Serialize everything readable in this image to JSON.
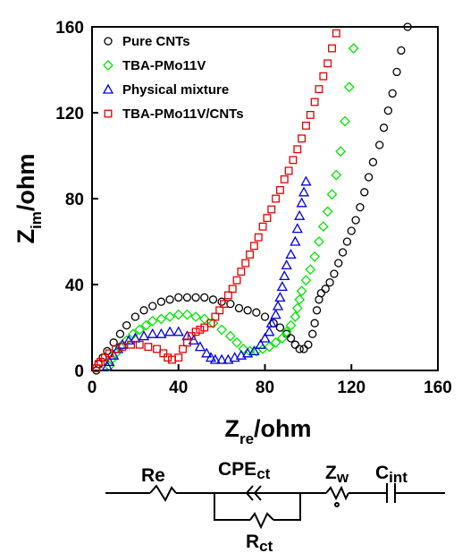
{
  "chart_data": {
    "type": "scatter",
    "title": "",
    "xlabel": {
      "main": "Z",
      "sub": "re",
      "unit": "/ohm"
    },
    "ylabel": {
      "main": "Z",
      "sub": "im",
      "unit": "/ohm"
    },
    "xlim": [
      0,
      160
    ],
    "ylim": [
      0,
      160
    ],
    "xticks": [
      "0",
      "40",
      "80",
      "120",
      "160"
    ],
    "yticks": [
      "0",
      "40",
      "80",
      "120",
      "160"
    ],
    "grid": false,
    "legend_position": "top-left",
    "series": [
      {
        "name": "Pure CNTs",
        "marker": "circle",
        "color": "#000000",
        "points": [
          [
            2,
            0
          ],
          [
            3,
            3
          ],
          [
            5,
            6
          ],
          [
            7,
            9
          ],
          [
            10,
            13
          ],
          [
            13,
            17
          ],
          [
            16,
            21
          ],
          [
            20,
            25
          ],
          [
            24,
            28
          ],
          [
            28,
            30
          ],
          [
            32,
            32
          ],
          [
            36,
            33
          ],
          [
            40,
            34
          ],
          [
            44,
            34
          ],
          [
            48,
            34
          ],
          [
            52,
            34
          ],
          [
            56,
            33
          ],
          [
            60,
            32
          ],
          [
            64,
            31
          ],
          [
            68,
            29
          ],
          [
            72,
            28
          ],
          [
            76,
            27
          ],
          [
            80,
            25
          ],
          [
            84,
            22
          ],
          [
            87,
            20
          ],
          [
            90,
            17
          ],
          [
            92,
            15
          ],
          [
            94,
            12
          ],
          [
            96,
            10
          ],
          [
            98,
            10
          ],
          [
            100,
            12
          ],
          [
            102,
            17
          ],
          [
            103,
            22
          ],
          [
            104,
            28
          ],
          [
            105,
            33
          ],
          [
            106,
            36
          ],
          [
            108,
            38
          ],
          [
            110,
            41
          ],
          [
            112,
            45
          ],
          [
            114,
            50
          ],
          [
            116,
            55
          ],
          [
            118,
            60
          ],
          [
            120,
            65
          ],
          [
            122,
            70
          ],
          [
            124,
            76
          ],
          [
            126,
            83
          ],
          [
            128,
            90
          ],
          [
            130,
            97
          ],
          [
            133,
            105
          ],
          [
            135,
            113
          ],
          [
            137,
            121
          ],
          [
            139,
            129
          ],
          [
            141,
            139
          ],
          [
            143,
            149
          ],
          [
            146,
            160
          ]
        ]
      },
      {
        "name": "TBA-PMo11V",
        "marker": "diamond",
        "color": "#00e600",
        "points": [
          [
            8,
            2
          ],
          [
            9,
            5
          ],
          [
            11,
            8
          ],
          [
            13,
            11
          ],
          [
            16,
            14
          ],
          [
            19,
            17
          ],
          [
            22,
            19
          ],
          [
            25,
            21
          ],
          [
            28,
            23
          ],
          [
            32,
            24
          ],
          [
            36,
            25
          ],
          [
            40,
            26
          ],
          [
            44,
            26
          ],
          [
            48,
            25
          ],
          [
            52,
            24
          ],
          [
            56,
            22
          ],
          [
            60,
            19
          ],
          [
            64,
            16
          ],
          [
            67,
            13
          ],
          [
            70,
            10
          ],
          [
            73,
            9
          ],
          [
            76,
            9
          ],
          [
            79,
            10
          ],
          [
            82,
            11
          ],
          [
            85,
            13
          ],
          [
            88,
            15
          ],
          [
            90,
            18
          ],
          [
            92,
            21
          ],
          [
            94,
            25
          ],
          [
            95,
            29
          ],
          [
            96,
            33
          ],
          [
            97,
            37
          ],
          [
            99,
            42
          ],
          [
            101,
            47
          ],
          [
            103,
            53
          ],
          [
            105,
            60
          ],
          [
            107,
            67
          ],
          [
            109,
            74
          ],
          [
            111,
            82
          ],
          [
            113,
            91
          ],
          [
            115,
            102
          ],
          [
            117,
            116
          ],
          [
            119,
            132
          ],
          [
            121,
            150
          ]
        ]
      },
      {
        "name": "Physical mixture",
        "marker": "triangle",
        "color": "#0000e6",
        "points": [
          [
            7,
            2
          ],
          [
            8,
            4
          ],
          [
            10,
            7
          ],
          [
            12,
            10
          ],
          [
            14,
            12
          ],
          [
            17,
            14
          ],
          [
            20,
            15
          ],
          [
            24,
            16
          ],
          [
            28,
            17
          ],
          [
            32,
            17
          ],
          [
            36,
            18
          ],
          [
            40,
            18
          ],
          [
            44,
            16
          ],
          [
            47,
            14
          ],
          [
            50,
            11
          ],
          [
            53,
            8
          ],
          [
            55,
            6
          ],
          [
            57,
            5
          ],
          [
            60,
            5
          ],
          [
            63,
            5
          ],
          [
            66,
            6
          ],
          [
            69,
            7
          ],
          [
            72,
            8
          ],
          [
            75,
            9
          ],
          [
            78,
            12
          ],
          [
            80,
            15
          ],
          [
            82,
            18
          ],
          [
            83,
            22
          ],
          [
            85,
            26
          ],
          [
            86,
            30
          ],
          [
            87,
            34
          ],
          [
            88,
            39
          ],
          [
            89,
            44
          ],
          [
            90,
            49
          ],
          [
            92,
            54
          ],
          [
            94,
            60
          ],
          [
            95,
            66
          ],
          [
            96,
            72
          ],
          [
            97,
            78
          ],
          [
            98,
            83
          ],
          [
            99,
            88
          ]
        ]
      },
      {
        "name": "TBA-PMo11V/CNTs",
        "marker": "square",
        "color": "#e60000",
        "points": [
          [
            2,
            1
          ],
          [
            3,
            3
          ],
          [
            4,
            4
          ],
          [
            6,
            6
          ],
          [
            8,
            8
          ],
          [
            11,
            10
          ],
          [
            14,
            11
          ],
          [
            18,
            12
          ],
          [
            22,
            12
          ],
          [
            26,
            11
          ],
          [
            30,
            10
          ],
          [
            33,
            8
          ],
          [
            35,
            6
          ],
          [
            37,
            5
          ],
          [
            40,
            6
          ],
          [
            42,
            10
          ],
          [
            44,
            13
          ],
          [
            46,
            16
          ],
          [
            48,
            18
          ],
          [
            50,
            19
          ],
          [
            52,
            20
          ],
          [
            55,
            22
          ],
          [
            57,
            25
          ],
          [
            59,
            28
          ],
          [
            61,
            31
          ],
          [
            63,
            35
          ],
          [
            65,
            38
          ],
          [
            67,
            42
          ],
          [
            69,
            46
          ],
          [
            71,
            50
          ],
          [
            73,
            54
          ],
          [
            75,
            58
          ],
          [
            77,
            62
          ],
          [
            79,
            67
          ],
          [
            81,
            71
          ],
          [
            83,
            75
          ],
          [
            85,
            80
          ],
          [
            87,
            84
          ],
          [
            89,
            89
          ],
          [
            91,
            93
          ],
          [
            93,
            98
          ],
          [
            95,
            103
          ],
          [
            97,
            108
          ],
          [
            99,
            114
          ],
          [
            101,
            119
          ],
          [
            103,
            125
          ],
          [
            105,
            131
          ],
          [
            107,
            137
          ],
          [
            109,
            143
          ],
          [
            111,
            150
          ],
          [
            113,
            157
          ]
        ]
      }
    ]
  },
  "circuit": {
    "labels": {
      "re": "Re",
      "cpe_main": "CPE",
      "cpe_sub": "ct",
      "rct_main": "R",
      "rct_sub": "ct",
      "zw_main": "Z",
      "zw_sub": "w",
      "cint_main": "C",
      "cint_sub": "int"
    }
  }
}
